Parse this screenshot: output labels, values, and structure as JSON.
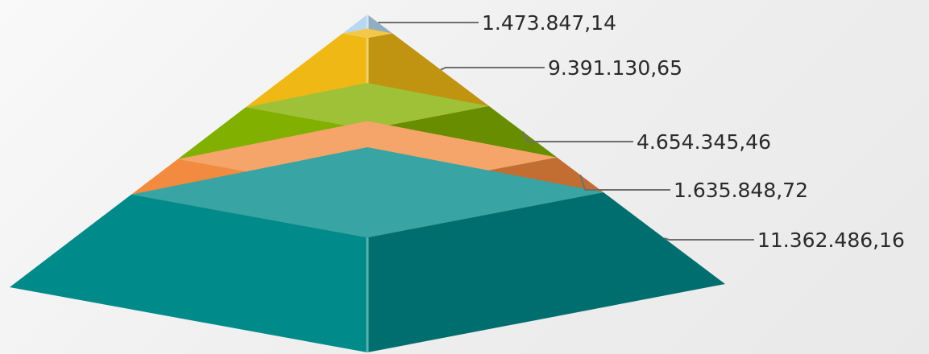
{
  "chart_data": {
    "type": "pyramid",
    "title": "",
    "legend": "none",
    "segments": [
      {
        "value": 1473847.14,
        "label": "1.473.847,14",
        "color": "#b8d8f0"
      },
      {
        "value": 9391130.65,
        "label": "9.391.130,65",
        "color": "#f0b814"
      },
      {
        "value": 4654345.46,
        "label": "4.654.345,46",
        "color": "#82b000"
      },
      {
        "value": 1635848.72,
        "label": "1.635.848,72",
        "color": "#f28a40"
      },
      {
        "value": 11362486.16,
        "label": "11.362.486,16",
        "color": "#008a8a"
      }
    ]
  }
}
